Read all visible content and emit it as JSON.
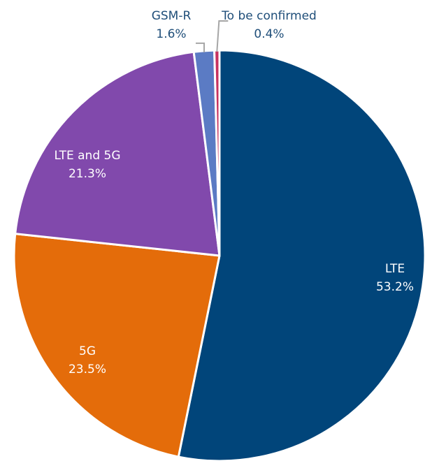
{
  "chart_data": {
    "type": "pie",
    "title": "",
    "start": "top",
    "direction": "clockwise",
    "slices": [
      {
        "label": "LTE",
        "value": 53.2,
        "display": "53.2%",
        "color": "#01457a"
      },
      {
        "label": "5G",
        "value": 23.5,
        "display": "23.5%",
        "color": "#e46c0a"
      },
      {
        "label": "LTE and 5G",
        "value": 21.3,
        "display": "21.3%",
        "color": "#8149ac"
      },
      {
        "label": "GSM-R",
        "value": 1.6,
        "display": "1.6%",
        "color": "#5b7bc4"
      },
      {
        "label": "To be confirmed",
        "value": 0.4,
        "display": "0.4%",
        "color": "#c8325f"
      }
    ],
    "separator_color": "#ffffff",
    "leader_color": "#a6a6a6",
    "outside_label_color": "#1f4e79"
  }
}
